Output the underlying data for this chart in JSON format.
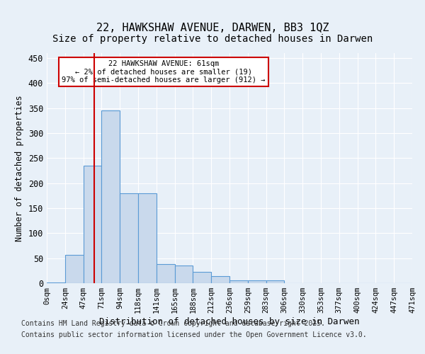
{
  "title1": "22, HAWKSHAW AVENUE, DARWEN, BB3 1QZ",
  "title2": "Size of property relative to detached houses in Darwen",
  "xlabel": "Distribution of detached houses by size in Darwen",
  "ylabel": "Number of detached properties",
  "bin_labels": [
    "0sqm",
    "24sqm",
    "47sqm",
    "71sqm",
    "94sqm",
    "118sqm",
    "141sqm",
    "165sqm",
    "188sqm",
    "212sqm",
    "236sqm",
    "259sqm",
    "283sqm",
    "306sqm",
    "330sqm",
    "353sqm",
    "377sqm",
    "400sqm",
    "424sqm",
    "447sqm",
    "471sqm"
  ],
  "bar_values": [
    2,
    57,
    235,
    345,
    180,
    180,
    38,
    35,
    23,
    14,
    6,
    5,
    6,
    0,
    0,
    0,
    0,
    0,
    0,
    0
  ],
  "bar_color": "#c9d9ec",
  "bar_edge_color": "#5b9bd5",
  "property_line_x": 1,
  "property_line_label": "22 HAWKSHAW AVENUE: 61sqm",
  "annotation_line1": "← 2% of detached houses are smaller (19)",
  "annotation_line2": "97% of semi-detached houses are larger (912) →",
  "annotation_box_color": "#ffffff",
  "annotation_box_edge_color": "#cc0000",
  "vline_color": "#cc0000",
  "ylim": [
    0,
    460
  ],
  "footer1": "Contains HM Land Registry data © Crown copyright and database right 2025.",
  "footer2": "Contains public sector information licensed under the Open Government Licence v3.0.",
  "bg_color": "#e8f0f8",
  "plot_bg_color": "#e8f0f8",
  "title_fontsize": 11,
  "subtitle_fontsize": 10,
  "tick_fontsize": 7.5,
  "footer_fontsize": 7
}
